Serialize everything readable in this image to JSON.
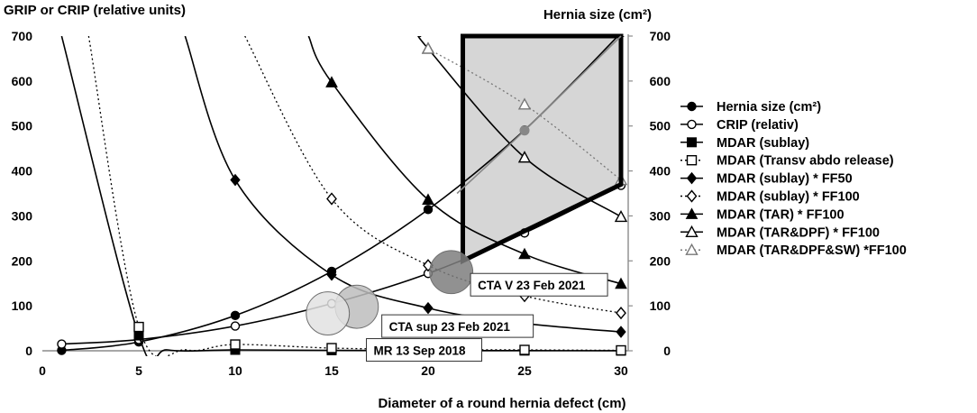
{
  "chart_data": {
    "type": "line",
    "ylabel_left": "GRIP or CRIP (relative units)",
    "ylabel_right": "Hernia size (cm²)",
    "xlabel": "Diameter of a round hernia defect (cm)",
    "xlim": [
      0,
      30
    ],
    "ylim": [
      0,
      700
    ],
    "x_ticks": [
      "0",
      "5",
      "10",
      "15",
      "20",
      "25",
      "30"
    ],
    "y_ticks": [
      "0",
      "100",
      "200",
      "300",
      "400",
      "500",
      "600",
      "700"
    ],
    "series": [
      {
        "name": "Hernia size (cm²)",
        "marker": "filled-circle",
        "line": "solid",
        "color": "#000000",
        "points": [
          [
            1,
            0.8
          ],
          [
            5,
            19.6
          ],
          [
            10,
            78.5
          ],
          [
            15,
            176.7
          ],
          [
            20,
            314.2
          ],
          [
            25,
            490.9
          ],
          [
            30,
            706.9
          ]
        ]
      },
      {
        "name": "CRIP (relativ)",
        "marker": "open-circle",
        "line": "solid",
        "color": "#000000",
        "points": [
          [
            1,
            15
          ],
          [
            5,
            25
          ],
          [
            10,
            55
          ],
          [
            15,
            105
          ],
          [
            20,
            172
          ],
          [
            25,
            262
          ],
          [
            30,
            368
          ]
        ]
      },
      {
        "name": "MDAR (sublay)",
        "marker": "filled-square",
        "line": "solid",
        "color": "#000000",
        "points": [
          [
            1,
            700
          ],
          [
            5,
            34
          ],
          [
            6.5,
            2
          ],
          [
            10,
            2
          ],
          [
            15,
            1
          ],
          [
            20,
            0.5
          ],
          [
            25,
            0.3
          ],
          [
            30,
            0.2
          ]
        ]
      },
      {
        "name": "MDAR (Transv abdo release)",
        "marker": "open-square",
        "line": "dotted",
        "color": "#000000",
        "points": [
          [
            2.4,
            700
          ],
          [
            5,
            53
          ],
          [
            7.5,
            2
          ],
          [
            10,
            14
          ],
          [
            15,
            6
          ],
          [
            20,
            3
          ],
          [
            25,
            2
          ],
          [
            30,
            1
          ]
        ]
      },
      {
        "name": "MDAR (sublay) * FF50",
        "marker": "filled-diamond",
        "line": "solid",
        "color": "#000000",
        "points": [
          [
            7.4,
            700
          ],
          [
            10,
            380
          ],
          [
            15,
            169
          ],
          [
            20,
            95
          ],
          [
            25,
            61
          ],
          [
            30,
            42
          ]
        ]
      },
      {
        "name": "MDAR (sublay) * FF100",
        "marker": "open-diamond",
        "line": "dotted",
        "color": "#000000",
        "points": [
          [
            10.5,
            700
          ],
          [
            15,
            338
          ],
          [
            20,
            190
          ],
          [
            25,
            122
          ],
          [
            30,
            84
          ]
        ]
      },
      {
        "name": "MDAR (TAR) * FF100",
        "marker": "filled-triangle",
        "line": "solid",
        "color": "#000000",
        "points": [
          [
            13.8,
            700
          ],
          [
            15,
            597
          ],
          [
            20,
            336
          ],
          [
            25,
            215
          ],
          [
            30,
            149
          ]
        ]
      },
      {
        "name": "MDAR (TAR&DPF) * FF100",
        "marker": "open-triangle",
        "line": "solid",
        "color": "#000000",
        "points": [
          [
            19.6,
            700
          ],
          [
            20,
            672
          ],
          [
            25,
            430
          ],
          [
            30,
            298
          ]
        ]
      },
      {
        "name": "MDAR (TAR&DPF&SW) *FF100",
        "marker": "open-triangle",
        "line": "dotted",
        "color": "#777777",
        "points": [
          [
            20,
            672
          ],
          [
            25,
            548
          ],
          [
            30,
            380
          ]
        ]
      }
    ],
    "overlays": {
      "shaded_region": {
        "polygon": [
          [
            21.8,
            700
          ],
          [
            30,
            700
          ],
          [
            30,
            370
          ],
          [
            21.8,
            200
          ]
        ],
        "fill": "#d6d6d6",
        "stroke": "#000000"
      },
      "grey_hernia_line": {
        "points": [
          [
            21.5,
            350
          ],
          [
            25,
            490
          ],
          [
            30,
            700
          ]
        ],
        "color": "#888888"
      },
      "grey_hernia_marker": {
        "point": [
          25,
          490
        ],
        "color": "#888888"
      },
      "bubbles": [
        {
          "center": [
            21.2,
            175
          ],
          "radius_units": 48,
          "fill": "#7e7e7e"
        },
        {
          "center": [
            16.3,
            98
          ],
          "radius_units": 48,
          "fill": "#bdbdbd"
        },
        {
          "center": [
            14.8,
            83
          ],
          "radius_units": 48,
          "fill": "#e2e2e2"
        }
      ]
    },
    "annotations": [
      {
        "text": "CTA V 23 Feb 2021",
        "anchor": [
          22.2,
          172
        ]
      },
      {
        "text": "CTA sup 23 Feb 2021",
        "anchor": [
          17.6,
          80
        ]
      },
      {
        "text": "MR 13 Sep 2018",
        "anchor": [
          16.8,
          27
        ]
      }
    ],
    "legend_position": "right",
    "grid": false
  }
}
